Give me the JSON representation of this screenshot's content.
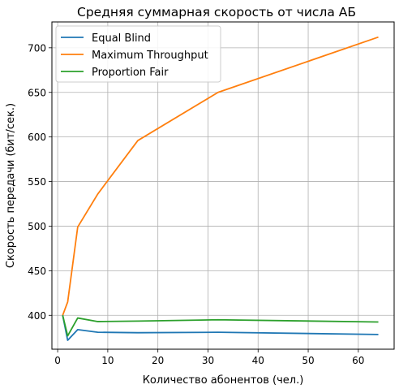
{
  "chart_data": {
    "type": "line",
    "title": "Средняя суммарная скорость от числа АБ",
    "xlabel": "Количество абонентов (чел.)",
    "ylabel": "Скорость передачи (бит/сек.)",
    "xlim": [
      -1.15,
      67.15
    ],
    "ylim": [
      362,
      729
    ],
    "x_ticks": [
      0,
      10,
      20,
      30,
      40,
      50,
      60
    ],
    "y_ticks": [
      400,
      450,
      500,
      550,
      600,
      650,
      700
    ],
    "grid": true,
    "legend_position": "top-left",
    "series": [
      {
        "name": "Equal Blind",
        "color": "#1f77b4",
        "x": [
          1,
          2,
          4,
          8,
          16,
          32,
          64
        ],
        "y": [
          400,
          372,
          384,
          381,
          380.5,
          381,
          378.5
        ]
      },
      {
        "name": "Maximum Throughput",
        "color": "#ff7f0e",
        "x": [
          1,
          2,
          4,
          8,
          16,
          32,
          64
        ],
        "y": [
          400,
          415,
          499,
          536,
          596,
          650,
          712
        ]
      },
      {
        "name": "Proportion Fair",
        "color": "#2ca02c",
        "x": [
          1,
          2,
          4,
          8,
          16,
          32,
          64
        ],
        "y": [
          400,
          377,
          397,
          393,
          393.5,
          395,
          392.5
        ]
      }
    ]
  }
}
